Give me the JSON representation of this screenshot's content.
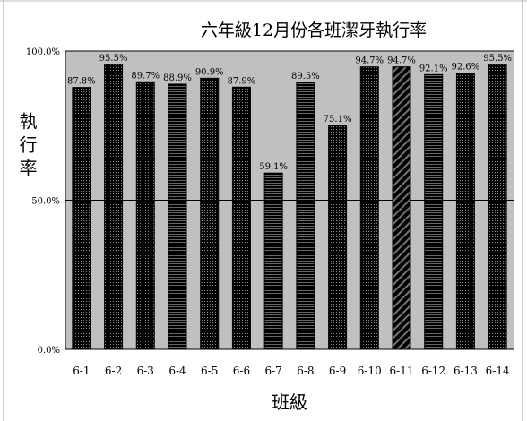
{
  "chart_data": {
    "type": "bar",
    "title": "六年級12月份各班潔牙執行率",
    "xlabel": "班級",
    "ylabel": "執行率",
    "categories": [
      "6-1",
      "6-2",
      "6-3",
      "6-4",
      "6-5",
      "6-6",
      "6-7",
      "6-8",
      "6-9",
      "6-10",
      "6-11",
      "6-12",
      "6-13",
      "6-14"
    ],
    "values": [
      87.8,
      95.5,
      89.7,
      88.9,
      90.9,
      87.9,
      59.1,
      89.5,
      75.1,
      94.7,
      94.7,
      92.1,
      92.6,
      95.5
    ],
    "data_labels": [
      "87.8%",
      "95.5%",
      "89.7%",
      "88.9%",
      "90.9%",
      "87.9%",
      "59.1%",
      "89.5%",
      "75.1%",
      "94.7%",
      "94.7%",
      "92.1%",
      "92.6%",
      "95.5%"
    ],
    "yticks": [
      "0.0%",
      "50.0%",
      "100.0%"
    ],
    "ytick_values": [
      0,
      50,
      100
    ],
    "ylim": [
      0,
      100
    ],
    "grid": true,
    "legend": "none",
    "plot_background": "#c0c0c0",
    "bar_colors": [
      "#800000",
      "#a8a832",
      "#f0b840",
      "#2a2aa0",
      "#60d8d8",
      "#e040e0",
      "#c8c8c8",
      "#a03070",
      "#30c8d8",
      "#e8fff0",
      "#ffa010",
      "#30a070",
      "#e8b8f0",
      "#f0b840"
    ]
  }
}
